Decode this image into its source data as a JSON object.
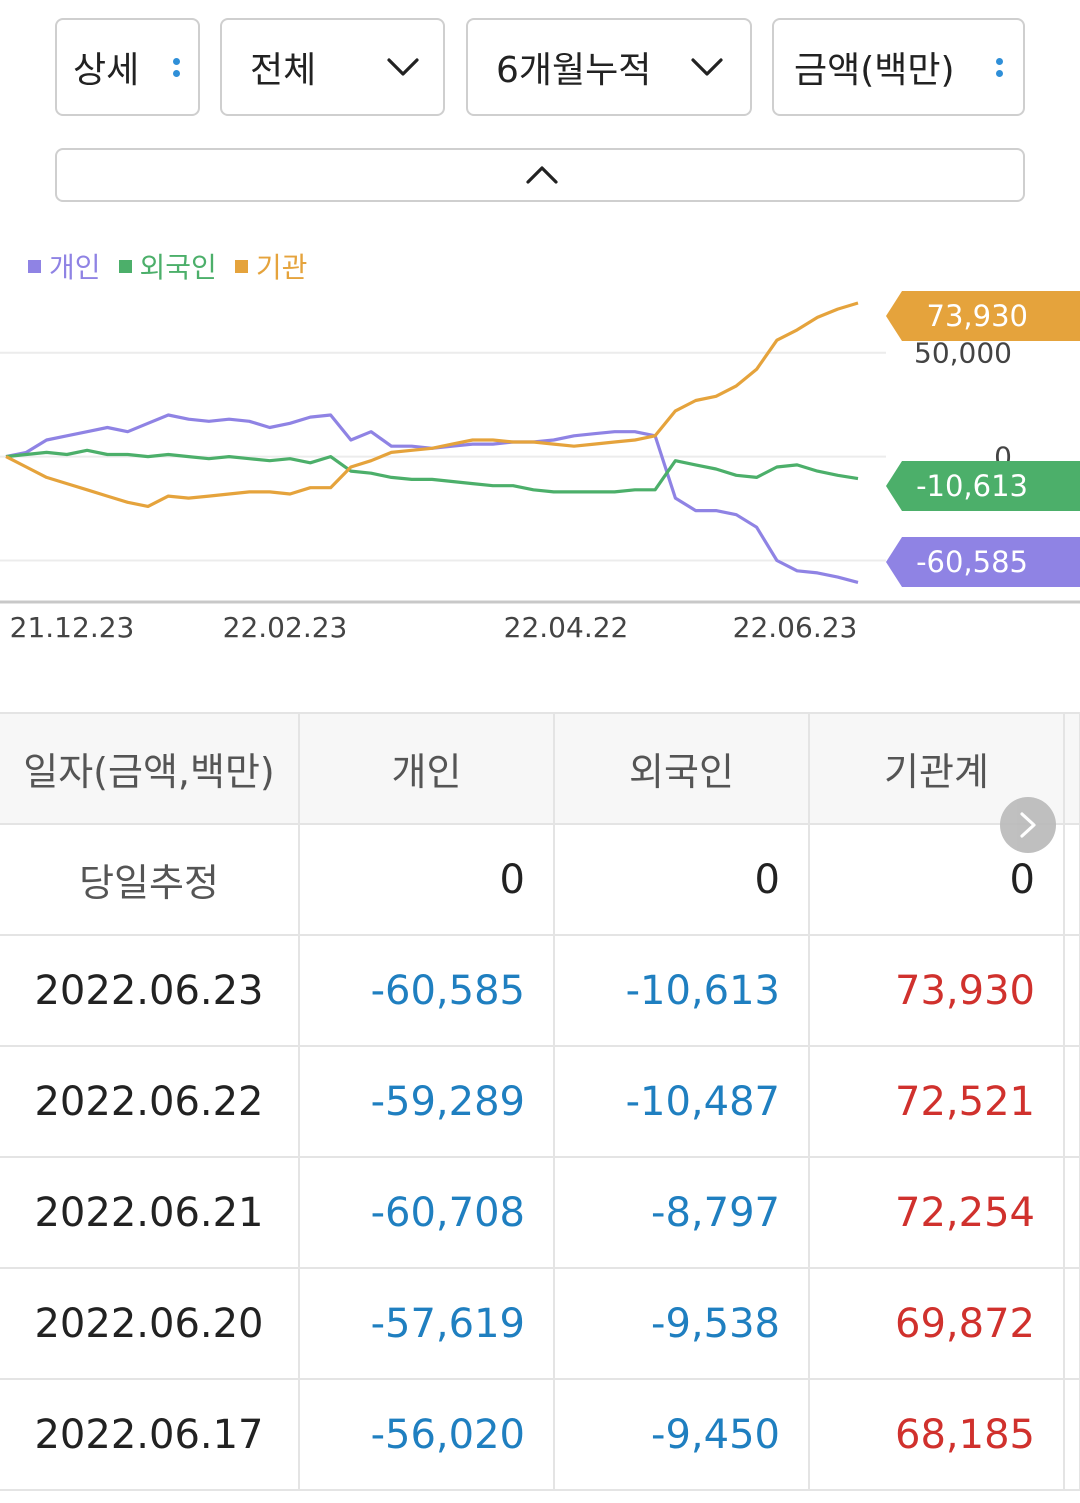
{
  "controls": {
    "detail": {
      "label": "상세"
    },
    "scope": {
      "label": "전체"
    },
    "period": {
      "label": "6개월누적"
    },
    "unit": {
      "label": "금액(백만)"
    }
  },
  "icons": {
    "more": "vertical-dots-icon",
    "dropdown": "chevron-down-icon",
    "collapse": "chevron-up-icon",
    "scroll": "chevron-right-icon"
  },
  "colors": {
    "individual": "#8f83e4",
    "foreign": "#4caf6a",
    "institution": "#e5a33c",
    "negative_text": "#1f7fc0",
    "positive_text": "#d0312d",
    "accent_dots": "#2f8fd8"
  },
  "legend": [
    {
      "label": "개인",
      "color": "#8f83e4"
    },
    {
      "label": "외국인",
      "color": "#4caf6a"
    },
    {
      "label": "기관",
      "color": "#e5a33c"
    }
  ],
  "chart_data": {
    "type": "line",
    "x_ticks": [
      "21.12.23",
      "22.02.23",
      "22.04.22",
      "22.06.23"
    ],
    "y_ticks": [
      "50,000",
      "0"
    ],
    "ylim": [
      -70000,
      85000
    ],
    "grid": true,
    "legend_position": "top-left",
    "end_labels": [
      "73,930",
      "-10,613",
      "-60,585"
    ],
    "series": [
      {
        "name": "개인",
        "color": "#8f83e4",
        "values": [
          0,
          2000,
          8000,
          10000,
          12000,
          14000,
          12000,
          16000,
          20000,
          18000,
          17000,
          18000,
          17000,
          14000,
          16000,
          19000,
          20000,
          8000,
          12000,
          5000,
          5000,
          4000,
          5000,
          6000,
          6000,
          7000,
          7000,
          8000,
          10000,
          11000,
          12000,
          12000,
          10000,
          -20000,
          -26000,
          -26000,
          -28000,
          -34000,
          -50000,
          -55000,
          -56000,
          -58000,
          -60585
        ]
      },
      {
        "name": "외국인",
        "color": "#4caf6a",
        "values": [
          0,
          1000,
          2000,
          1000,
          3000,
          1000,
          1000,
          0,
          1000,
          0,
          -1000,
          0,
          -1000,
          -2000,
          -1000,
          -3000,
          0,
          -7000,
          -8000,
          -10000,
          -11000,
          -11000,
          -12000,
          -13000,
          -14000,
          -14000,
          -16000,
          -17000,
          -17000,
          -17000,
          -17000,
          -16000,
          -16000,
          -2000,
          -4000,
          -6000,
          -9000,
          -10000,
          -5000,
          -4000,
          -7000,
          -9000,
          -10613
        ]
      },
      {
        "name": "기관",
        "color": "#e5a33c",
        "values": [
          0,
          -5000,
          -10000,
          -13000,
          -16000,
          -19000,
          -22000,
          -24000,
          -19000,
          -20000,
          -19000,
          -18000,
          -17000,
          -17000,
          -18000,
          -15000,
          -15000,
          -5000,
          -2000,
          2000,
          3000,
          4000,
          6000,
          8000,
          8000,
          7000,
          7000,
          6000,
          5000,
          6000,
          7000,
          8000,
          10000,
          22000,
          27000,
          29000,
          34000,
          42000,
          56000,
          61000,
          67000,
          71000,
          73930
        ]
      }
    ]
  },
  "table": {
    "headers": [
      "일자(금액,백만)",
      "개인",
      "외국인",
      "기관계"
    ],
    "estimate_row": {
      "label": "당일추정",
      "individual": "0",
      "foreign": "0",
      "institution": "0"
    },
    "rows": [
      {
        "date": "2022.06.23",
        "individual": "-60,585",
        "foreign": "-10,613",
        "institution": "73,930"
      },
      {
        "date": "2022.06.22",
        "individual": "-59,289",
        "foreign": "-10,487",
        "institution": "72,521"
      },
      {
        "date": "2022.06.21",
        "individual": "-60,708",
        "foreign": "-8,797",
        "institution": "72,254"
      },
      {
        "date": "2022.06.20",
        "individual": "-57,619",
        "foreign": "-9,538",
        "institution": "69,872"
      },
      {
        "date": "2022.06.17",
        "individual": "-56,020",
        "foreign": "-9,450",
        "institution": "68,185"
      }
    ]
  }
}
